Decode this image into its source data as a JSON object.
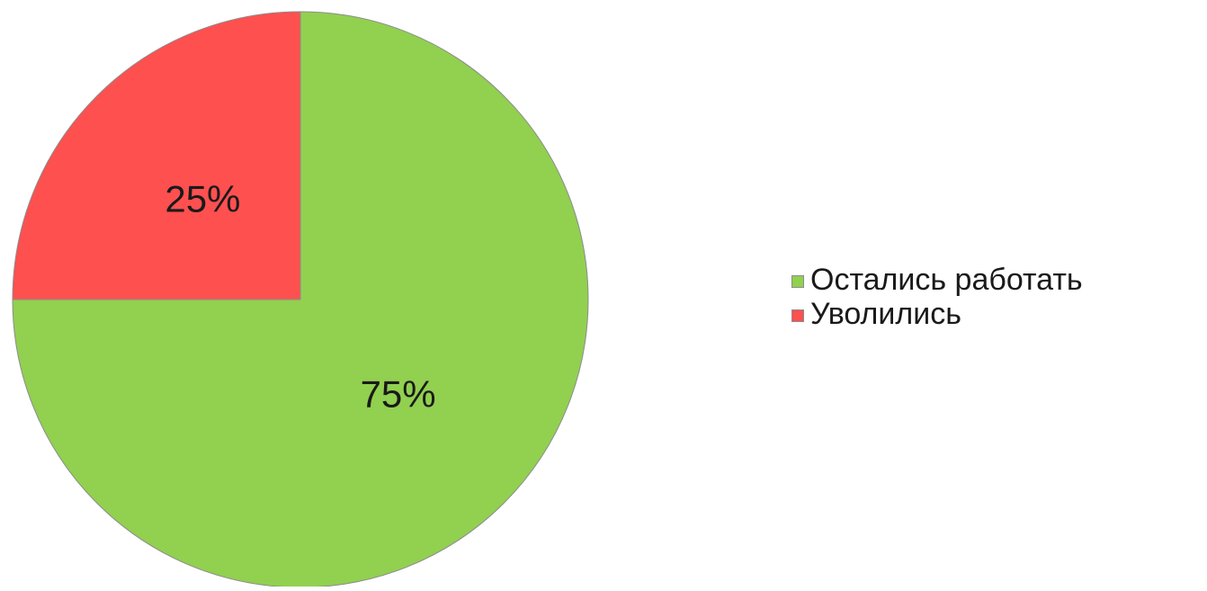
{
  "chart_data": {
    "type": "pie",
    "title": "",
    "slices": [
      {
        "label": "Остались работать",
        "value": 75,
        "display": "75%",
        "color": "#92d050"
      },
      {
        "label": "Уволились",
        "value": 25,
        "display": "25%",
        "color": "#ff5050"
      }
    ],
    "start": "12 o'clock",
    "direction": "clockwise",
    "legend": "right"
  }
}
